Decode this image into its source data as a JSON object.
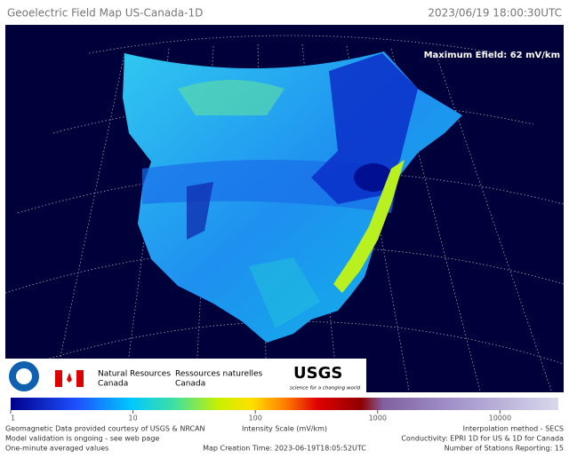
{
  "header": {
    "title": "Geoelectric Field Map US-Canada-1D",
    "timestamp": "2023/06/19 18:00:30UTC"
  },
  "map": {
    "max_efield": "Maximum Efield: 62 mV/km"
  },
  "logos": {
    "nrcan_en": [
      "Natural Resources",
      "Canada"
    ],
    "nrcan_fr": [
      "Ressources naturelles",
      "Canada"
    ],
    "usgs": "USGS",
    "usgs_tagline": "science for a changing world"
  },
  "colorbar": {
    "scale": "log",
    "lim": [
      1,
      30000
    ],
    "ticks": [
      1,
      10,
      100,
      1000,
      10000
    ],
    "label": "Intensity Scale (mV/km)"
  },
  "footer": {
    "left": [
      "Geomagnetic Data provided courtesy of USGS & NRCAN",
      "Model validation is ongoing - see web page",
      "One-minute averaged values"
    ],
    "center": "Map Creation Time: 2023-06-19T18:05:52UTC",
    "right": [
      "Interpolation method - SECS",
      "Conductivity: EPRI 1D for US & 1D for Canada",
      "Number of Stations Reporting: 15"
    ]
  }
}
